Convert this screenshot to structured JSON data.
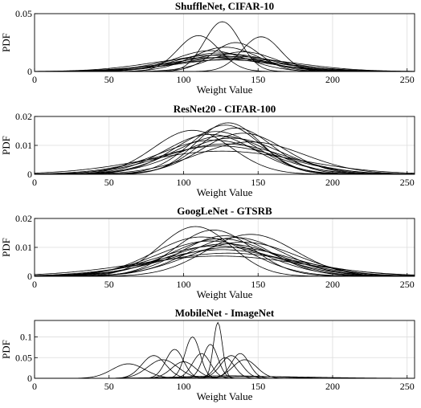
{
  "chart_data": [
    {
      "type": "line",
      "title": "ShuffleNet, CIFAR-10",
      "xlabel": "Weight Value",
      "ylabel": "PDF",
      "xlim": [
        0,
        255
      ],
      "ylim": [
        0,
        0.05
      ],
      "xticks": [
        0,
        50,
        100,
        150,
        200,
        250
      ],
      "yticks": [
        0,
        0.05
      ],
      "ytick_labels": [
        "0",
        "0.05"
      ],
      "grid": true,
      "series": [
        {
          "curve": "gaussian",
          "mean": 126,
          "std": 12,
          "peak": 0.043
        },
        {
          "curve": "gaussian",
          "mean": 110,
          "std": 14,
          "peak": 0.031
        },
        {
          "curve": "gaussian",
          "mean": 152,
          "std": 13,
          "peak": 0.03
        },
        {
          "curve": "gaussian",
          "mean": 135,
          "std": 16,
          "peak": 0.025
        },
        {
          "curve": "gaussian",
          "mean": 128,
          "std": 22,
          "peak": 0.021
        },
        {
          "curve": "gaussian",
          "mean": 118,
          "std": 24,
          "peak": 0.018
        },
        {
          "curve": "gaussian",
          "mean": 140,
          "std": 22,
          "peak": 0.017
        },
        {
          "curve": "gaussian",
          "mean": 124,
          "std": 28,
          "peak": 0.016
        },
        {
          "curve": "gaussian",
          "mean": 130,
          "std": 30,
          "peak": 0.015
        },
        {
          "curve": "gaussian",
          "mean": 120,
          "std": 32,
          "peak": 0.014
        },
        {
          "curve": "gaussian",
          "mean": 134,
          "std": 34,
          "peak": 0.013
        },
        {
          "curve": "gaussian",
          "mean": 126,
          "std": 36,
          "peak": 0.012
        },
        {
          "curve": "gaussian",
          "mean": 116,
          "std": 38,
          "peak": 0.012
        },
        {
          "curve": "gaussian",
          "mean": 138,
          "std": 40,
          "peak": 0.011
        },
        {
          "curve": "gaussian",
          "mean": 128,
          "std": 42,
          "peak": 0.01
        }
      ]
    },
    {
      "type": "line",
      "title": "ResNet20 - CIFAR-100",
      "xlabel": "Weight Value",
      "ylabel": "PDF",
      "xlim": [
        0,
        255
      ],
      "ylim": [
        0,
        0.02
      ],
      "xticks": [
        0,
        50,
        100,
        150,
        200,
        250
      ],
      "yticks": [
        0,
        0.01,
        0.02
      ],
      "ytick_labels": [
        "0",
        "0.01",
        "0.02"
      ],
      "grid": true,
      "series": [
        {
          "curve": "gaussian",
          "mean": 130,
          "std": 22,
          "peak": 0.0178
        },
        {
          "curve": "gaussian",
          "mean": 128,
          "std": 24,
          "peak": 0.017
        },
        {
          "curve": "gaussian",
          "mean": 106,
          "std": 26,
          "peak": 0.0152
        },
        {
          "curve": "gaussian",
          "mean": 135,
          "std": 25,
          "peak": 0.016
        },
        {
          "curve": "gaussian",
          "mean": 122,
          "std": 28,
          "peak": 0.0148
        },
        {
          "curve": "gaussian",
          "mean": 140,
          "std": 28,
          "peak": 0.0142
        },
        {
          "curve": "gaussian",
          "mean": 118,
          "std": 30,
          "peak": 0.0138
        },
        {
          "curve": "gaussian",
          "mean": 126,
          "std": 32,
          "peak": 0.0132
        },
        {
          "curve": "gaussian",
          "mean": 132,
          "std": 34,
          "peak": 0.0125
        },
        {
          "curve": "gaussian",
          "mean": 120,
          "std": 36,
          "peak": 0.0118
        },
        {
          "curve": "gaussian",
          "mean": 145,
          "std": 36,
          "peak": 0.0112
        },
        {
          "curve": "gaussian",
          "mean": 128,
          "std": 40,
          "peak": 0.0105
        },
        {
          "curve": "gaussian",
          "mean": 124,
          "std": 42,
          "peak": 0.0098
        },
        {
          "curve": "gaussian",
          "mean": 126,
          "std": 52,
          "peak": 0.008
        }
      ]
    },
    {
      "type": "line",
      "title": "GoogLeNet - GTSRB",
      "xlabel": "Weight Value",
      "ylabel": "PDF",
      "xlim": [
        0,
        255
      ],
      "ylim": [
        0,
        0.02
      ],
      "xticks": [
        0,
        50,
        100,
        150,
        200,
        250
      ],
      "yticks": [
        0,
        0.01,
        0.02
      ],
      "ytick_labels": [
        "0",
        "0.01",
        "0.02"
      ],
      "grid": true,
      "series": [
        {
          "curve": "gaussian",
          "mean": 108,
          "std": 24,
          "peak": 0.0172
        },
        {
          "curve": "gaussian",
          "mean": 120,
          "std": 26,
          "peak": 0.016
        },
        {
          "curve": "gaussian",
          "mean": 145,
          "std": 30,
          "peak": 0.0145
        },
        {
          "curve": "gaussian",
          "mean": 128,
          "std": 30,
          "peak": 0.014
        },
        {
          "curve": "gaussian",
          "mean": 112,
          "std": 32,
          "peak": 0.0136
        },
        {
          "curve": "gaussian",
          "mean": 135,
          "std": 32,
          "peak": 0.0134
        },
        {
          "curve": "gaussian",
          "mean": 125,
          "std": 34,
          "peak": 0.013
        },
        {
          "curve": "gaussian",
          "mean": 118,
          "std": 36,
          "peak": 0.0122
        },
        {
          "curve": "gaussian",
          "mean": 140,
          "std": 36,
          "peak": 0.0118
        },
        {
          "curve": "gaussian",
          "mean": 128,
          "std": 38,
          "peak": 0.0112
        },
        {
          "curve": "gaussian",
          "mean": 122,
          "std": 40,
          "peak": 0.0105
        },
        {
          "curve": "gaussian",
          "mean": 132,
          "std": 42,
          "peak": 0.01
        },
        {
          "curve": "gaussian",
          "mean": 126,
          "std": 44,
          "peak": 0.0092
        },
        {
          "curve": "gaussian",
          "mean": 130,
          "std": 50,
          "peak": 0.008
        },
        {
          "curve": "gaussian",
          "mean": 124,
          "std": 56,
          "peak": 0.007
        }
      ]
    },
    {
      "type": "line",
      "title": "MobileNet - ImageNet",
      "xlabel": "Weight Value",
      "ylabel": "PDF",
      "xlim": [
        0,
        255
      ],
      "ylim": [
        0,
        0.14
      ],
      "xticks": [
        0,
        50,
        100,
        150,
        200,
        250
      ],
      "yticks": [
        0,
        0.05,
        0.1
      ],
      "ytick_labels": [
        "0",
        "0.05",
        "0.1"
      ],
      "grid": true,
      "series": [
        {
          "curve": "gaussian",
          "mean": 63,
          "std": 11,
          "peak": 0.035
        },
        {
          "curve": "gaussian",
          "mean": 80,
          "std": 8,
          "peak": 0.055
        },
        {
          "curve": "gaussian",
          "mean": 86,
          "std": 10,
          "peak": 0.045
        },
        {
          "curve": "gaussian",
          "mean": 94,
          "std": 6,
          "peak": 0.07
        },
        {
          "curve": "gaussian",
          "mean": 100,
          "std": 8,
          "peak": 0.04
        },
        {
          "curve": "gaussian",
          "mean": 106,
          "std": 5,
          "peak": 0.1
        },
        {
          "curve": "gaussian",
          "mean": 112,
          "std": 6,
          "peak": 0.06
        },
        {
          "curve": "gaussian",
          "mean": 118,
          "std": 5,
          "peak": 0.082
        },
        {
          "curve": "gaussian",
          "mean": 123,
          "std": 3,
          "peak": 0.135
        },
        {
          "curve": "gaussian",
          "mean": 128,
          "std": 6,
          "peak": 0.05
        },
        {
          "curve": "gaussian",
          "mean": 132,
          "std": 7,
          "peak": 0.055
        },
        {
          "curve": "gaussian",
          "mean": 138,
          "std": 6,
          "peak": 0.06
        },
        {
          "curve": "gaussian",
          "mean": 141,
          "std": 8,
          "peak": 0.045
        },
        {
          "curve": "gaussian",
          "mean": 130,
          "std": 30,
          "peak": 0.006
        },
        {
          "curve": "gaussian",
          "mean": 150,
          "std": 40,
          "peak": 0.004
        }
      ]
    }
  ]
}
